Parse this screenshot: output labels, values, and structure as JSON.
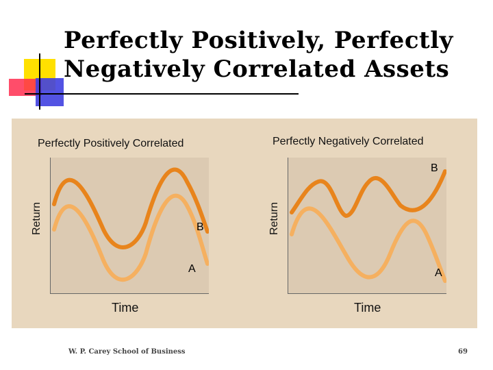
{
  "slide": {
    "title": "Perfectly Positively, Perfectly Negatively Correlated Assets",
    "footer": "W. P. Carey School of Business",
    "page_number": "69"
  },
  "left_plot": {
    "title": "Perfectly Positively Correlated",
    "ylabel": "Return",
    "xlabel": "Time",
    "label_b": "B",
    "label_a": "A"
  },
  "right_plot": {
    "title": "Perfectly Negatively Correlated",
    "ylabel": "Return",
    "xlabel": "Time",
    "label_b": "B",
    "label_a": "A"
  },
  "colors": {
    "curve_b": "#e8841c",
    "curve_a": "#f5b060",
    "panel": "#e8d7be"
  }
}
